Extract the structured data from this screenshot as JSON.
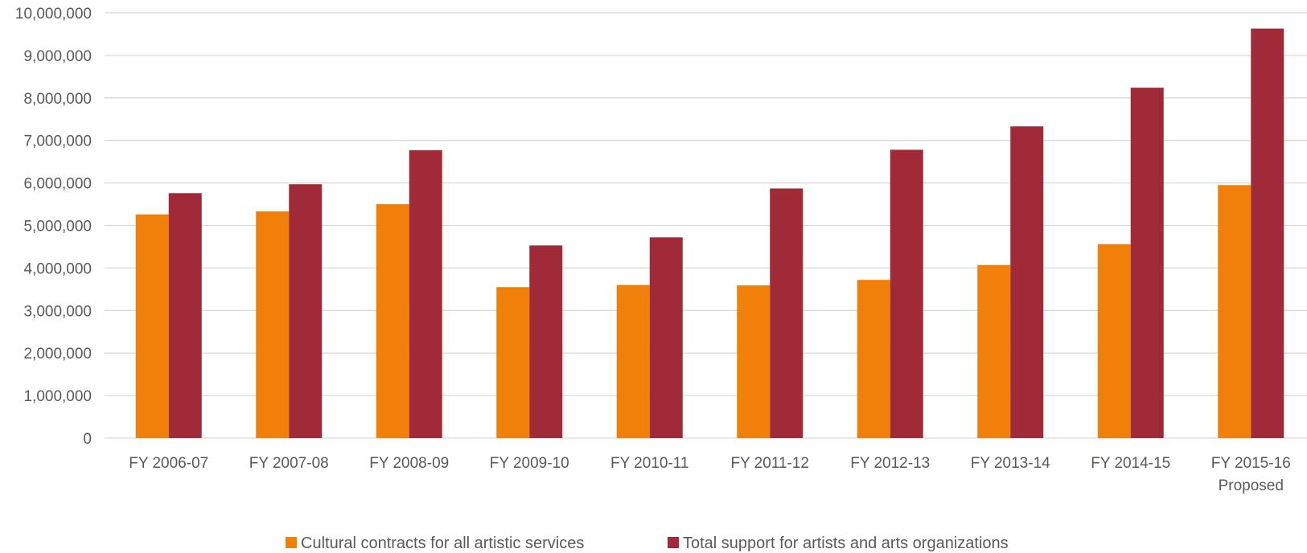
{
  "chart_data": {
    "type": "bar",
    "title": "",
    "xlabel": "",
    "ylabel": "",
    "ylim": [
      0,
      10000000
    ],
    "yticks": [
      "0",
      "1,000,000",
      "2,000,000",
      "3,000,000",
      "4,000,000",
      "5,000,000",
      "6,000,000",
      "7,000,000",
      "8,000,000",
      "9,000,000",
      "10,000,000"
    ],
    "categories": [
      [
        "FY 2006-07"
      ],
      [
        "FY 2007-08"
      ],
      [
        "FY 2008-09"
      ],
      [
        "FY 2009-10"
      ],
      [
        "FY 2010-11"
      ],
      [
        "FY 2011-12"
      ],
      [
        "FY 2012-13"
      ],
      [
        "FY 2013-14"
      ],
      [
        "FY 2014-15"
      ],
      [
        "FY 2015-16",
        "Proposed"
      ]
    ],
    "series": [
      {
        "name": "Cultural contracts for all artistic services",
        "color": "#f0800a",
        "values": [
          5260000,
          5330000,
          5500000,
          3550000,
          3600000,
          3590000,
          3720000,
          4070000,
          4560000,
          5950000
        ]
      },
      {
        "name": "Total support for artists and arts organizations",
        "color": "#a12a38",
        "values": [
          5760000,
          5970000,
          6770000,
          4530000,
          4720000,
          5870000,
          6780000,
          7330000,
          8240000,
          9630000
        ]
      }
    ],
    "grid": true,
    "legend": "bottom"
  }
}
